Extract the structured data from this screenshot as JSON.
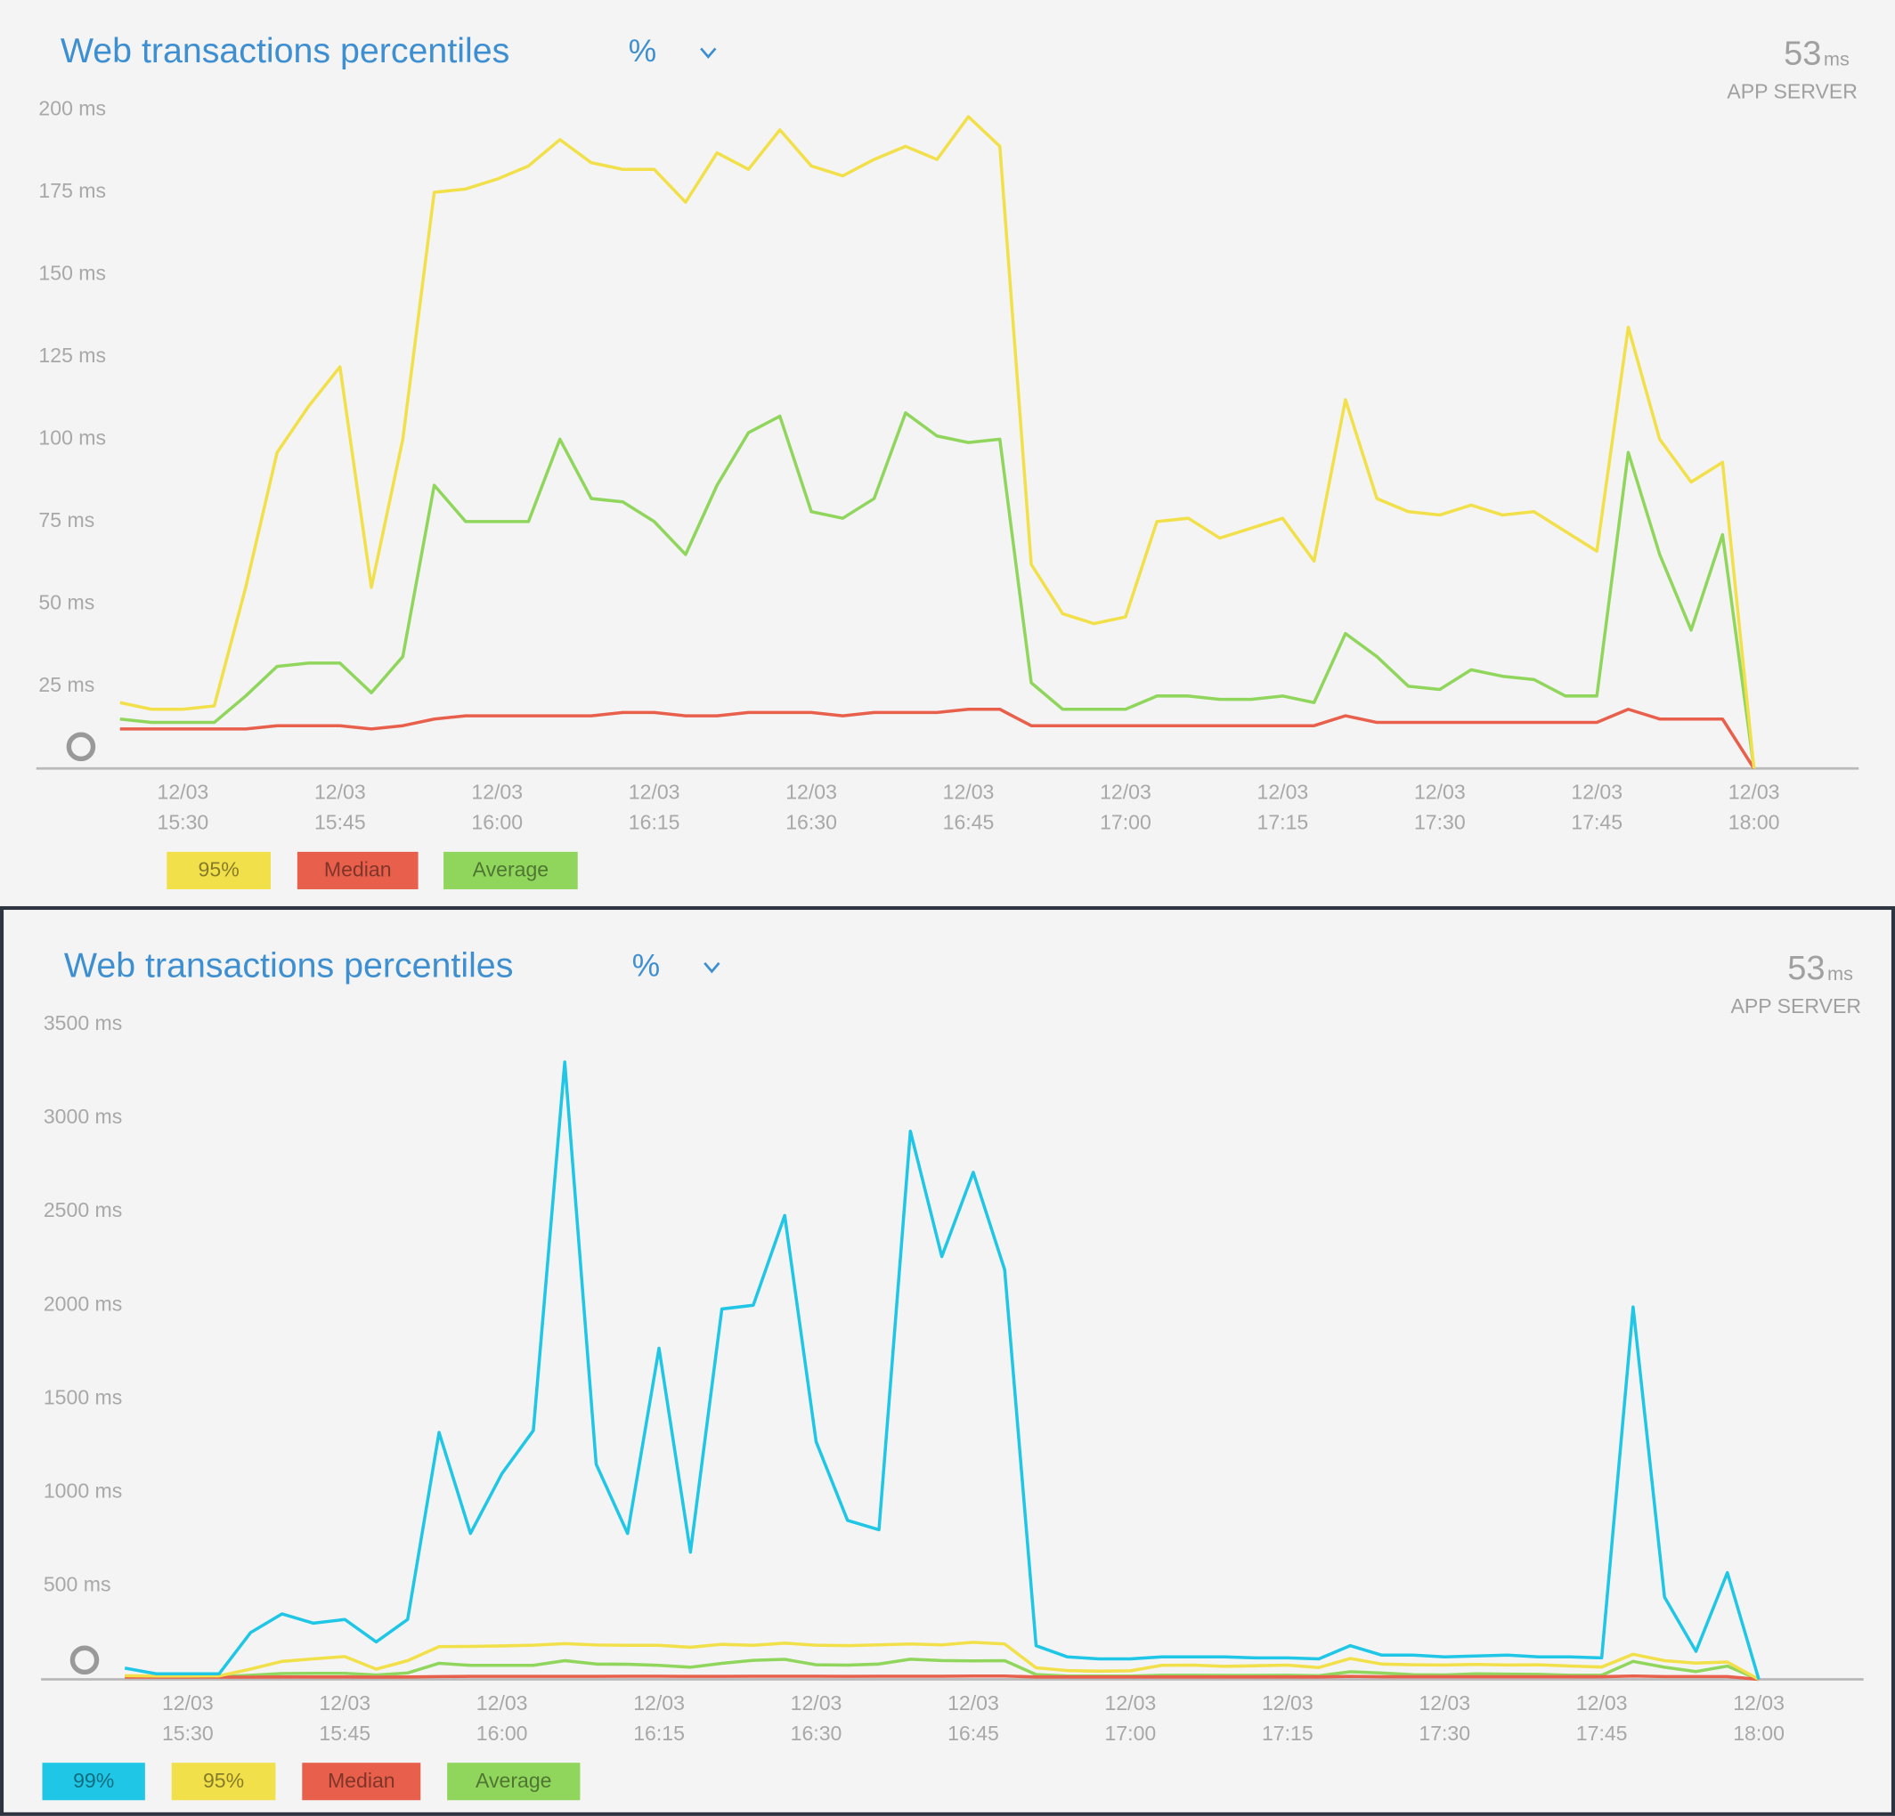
{
  "chart_data": [
    {
      "type": "line",
      "title": "Web transactions percentiles",
      "selector": "%",
      "headline_value": 53,
      "headline_unit": "ms",
      "headline_label": "APP SERVER",
      "x": [
        "12/03 15:24",
        "12/03 15:27",
        "12/03 15:30",
        "12/03 15:33",
        "12/03 15:36",
        "12/03 15:39",
        "12/03 15:42",
        "12/03 15:45",
        "12/03 15:48",
        "12/03 15:51",
        "12/03 15:54",
        "12/03 15:57",
        "12/03 16:00",
        "12/03 16:03",
        "12/03 16:06",
        "12/03 16:09",
        "12/03 16:12",
        "12/03 16:15",
        "12/03 16:18",
        "12/03 16:21",
        "12/03 16:24",
        "12/03 16:27",
        "12/03 16:30",
        "12/03 16:33",
        "12/03 16:36",
        "12/03 16:39",
        "12/03 16:42",
        "12/03 16:45",
        "12/03 16:48",
        "12/03 16:51",
        "12/03 16:54",
        "12/03 16:57",
        "12/03 17:00",
        "12/03 17:03",
        "12/03 17:06",
        "12/03 17:09",
        "12/03 17:12",
        "12/03 17:15",
        "12/03 17:18",
        "12/03 17:21",
        "12/03 17:24",
        "12/03 17:27",
        "12/03 17:30",
        "12/03 17:33",
        "12/03 17:36",
        "12/03 17:39",
        "12/03 17:42",
        "12/03 17:45",
        "12/03 17:48",
        "12/03 17:51",
        "12/03 17:54",
        "12/03 17:57",
        "12/03 18:00"
      ],
      "series": [
        {
          "name": "95%",
          "color": "#f2e04a",
          "values": [
            20,
            18,
            18,
            19,
            55,
            96,
            110,
            122,
            55,
            100,
            175,
            176,
            179,
            183,
            191,
            184,
            182,
            182,
            172,
            187,
            182,
            194,
            183,
            180,
            185,
            189,
            185,
            198,
            189,
            62,
            47,
            44,
            46,
            75,
            76,
            70,
            73,
            76,
            63,
            112,
            82,
            78,
            77,
            80,
            77,
            78,
            72,
            66,
            134,
            100,
            87,
            93,
            0
          ]
        },
        {
          "name": "Median",
          "color": "#e8604c",
          "values": [
            12,
            12,
            12,
            12,
            12,
            13,
            13,
            13,
            12,
            13,
            15,
            16,
            16,
            16,
            16,
            16,
            17,
            17,
            16,
            16,
            17,
            17,
            17,
            16,
            17,
            17,
            17,
            18,
            18,
            13,
            13,
            13,
            13,
            13,
            13,
            13,
            13,
            13,
            13,
            16,
            14,
            14,
            14,
            14,
            14,
            14,
            14,
            14,
            18,
            15,
            15,
            15,
            0
          ]
        },
        {
          "name": "Average",
          "color": "#90d65c",
          "values": [
            15,
            14,
            14,
            14,
            22,
            31,
            32,
            32,
            23,
            34,
            86,
            75,
            75,
            75,
            100,
            82,
            81,
            75,
            65,
            86,
            102,
            107,
            78,
            76,
            82,
            108,
            101,
            99,
            100,
            26,
            18,
            18,
            18,
            22,
            22,
            21,
            21,
            22,
            20,
            41,
            34,
            25,
            24,
            30,
            28,
            27,
            22,
            22,
            96,
            65,
            42,
            71,
            0
          ]
        }
      ],
      "xlim": [
        "12/03 15:16",
        "12/03 18:10"
      ],
      "xticks": [
        "12/03 15:30",
        "12/03 15:45",
        "12/03 16:00",
        "12/03 16:15",
        "12/03 16:30",
        "12/03 16:45",
        "12/03 17:00",
        "12/03 17:15",
        "12/03 17:30",
        "12/03 17:45",
        "12/03 18:00"
      ],
      "ylim": [
        0,
        200
      ],
      "yticks": [
        {
          "value": 25,
          "label": "25 ms"
        },
        {
          "value": 50,
          "label": "50 ms"
        },
        {
          "value": 75,
          "label": "75 ms"
        },
        {
          "value": 100,
          "label": "100 ms"
        },
        {
          "value": 125,
          "label": "125 ms"
        },
        {
          "value": 150,
          "label": "150 ms"
        },
        {
          "value": 175,
          "label": "175 ms"
        },
        {
          "value": 200,
          "label": "200 ms"
        }
      ]
    },
    {
      "type": "line",
      "title": "Web transactions percentiles",
      "selector": "%",
      "headline_value": 53,
      "headline_unit": "ms",
      "headline_label": "APP SERVER",
      "x": [
        "12/03 15:24",
        "12/03 15:27",
        "12/03 15:30",
        "12/03 15:33",
        "12/03 15:36",
        "12/03 15:39",
        "12/03 15:42",
        "12/03 15:45",
        "12/03 15:48",
        "12/03 15:51",
        "12/03 15:54",
        "12/03 15:57",
        "12/03 16:00",
        "12/03 16:03",
        "12/03 16:06",
        "12/03 16:09",
        "12/03 16:12",
        "12/03 16:15",
        "12/03 16:18",
        "12/03 16:21",
        "12/03 16:24",
        "12/03 16:27",
        "12/03 16:30",
        "12/03 16:33",
        "12/03 16:36",
        "12/03 16:39",
        "12/03 16:42",
        "12/03 16:45",
        "12/03 16:48",
        "12/03 16:51",
        "12/03 16:54",
        "12/03 16:57",
        "12/03 17:00",
        "12/03 17:03",
        "12/03 17:06",
        "12/03 17:09",
        "12/03 17:12",
        "12/03 17:15",
        "12/03 17:18",
        "12/03 17:21",
        "12/03 17:24",
        "12/03 17:27",
        "12/03 17:30",
        "12/03 17:33",
        "12/03 17:36",
        "12/03 17:39",
        "12/03 17:42",
        "12/03 17:45",
        "12/03 17:48",
        "12/03 17:51",
        "12/03 17:54",
        "12/03 17:57",
        "12/03 18:00"
      ],
      "series": [
        {
          "name": "99%",
          "color": "#1fc6e6",
          "values": [
            60,
            30,
            30,
            30,
            250,
            350,
            300,
            320,
            200,
            320,
            1320,
            780,
            1100,
            1330,
            3300,
            1150,
            780,
            1770,
            680,
            1980,
            2000,
            2480,
            1270,
            850,
            800,
            2930,
            2260,
            2710,
            2190,
            180,
            120,
            110,
            110,
            120,
            120,
            120,
            115,
            115,
            110,
            180,
            130,
            130,
            120,
            125,
            130,
            120,
            120,
            115,
            1990,
            440,
            150,
            570,
            0
          ]
        },
        {
          "name": "95%",
          "color": "#f2e04a",
          "values": [
            20,
            18,
            18,
            19,
            55,
            96,
            110,
            122,
            55,
            100,
            175,
            176,
            179,
            183,
            191,
            184,
            182,
            182,
            172,
            187,
            182,
            194,
            183,
            180,
            185,
            189,
            185,
            198,
            189,
            62,
            47,
            44,
            46,
            75,
            76,
            70,
            73,
            76,
            63,
            112,
            82,
            78,
            77,
            80,
            77,
            78,
            72,
            66,
            134,
            100,
            87,
            93,
            0
          ]
        },
        {
          "name": "Median",
          "color": "#e8604c",
          "values": [
            12,
            12,
            12,
            12,
            12,
            13,
            13,
            13,
            12,
            13,
            15,
            16,
            16,
            16,
            16,
            16,
            17,
            17,
            16,
            16,
            17,
            17,
            17,
            16,
            17,
            17,
            17,
            18,
            18,
            13,
            13,
            13,
            13,
            13,
            13,
            13,
            13,
            13,
            13,
            16,
            14,
            14,
            14,
            14,
            14,
            14,
            14,
            14,
            18,
            15,
            15,
            15,
            0
          ]
        },
        {
          "name": "Average",
          "color": "#90d65c",
          "values": [
            15,
            14,
            14,
            14,
            22,
            31,
            32,
            32,
            23,
            34,
            86,
            75,
            75,
            75,
            100,
            82,
            81,
            75,
            65,
            86,
            102,
            107,
            78,
            76,
            82,
            108,
            101,
            99,
            100,
            26,
            18,
            18,
            18,
            22,
            22,
            21,
            21,
            22,
            20,
            41,
            34,
            25,
            24,
            30,
            28,
            27,
            22,
            22,
            96,
            65,
            42,
            71,
            0
          ]
        }
      ],
      "xlim": [
        "12/03 15:16",
        "12/03 18:10"
      ],
      "xticks": [
        "12/03 15:30",
        "12/03 15:45",
        "12/03 16:00",
        "12/03 16:15",
        "12/03 16:30",
        "12/03 16:45",
        "12/03 17:00",
        "12/03 17:15",
        "12/03 17:30",
        "12/03 17:45",
        "12/03 18:00"
      ],
      "ylim": [
        0,
        3500
      ],
      "yticks": [
        {
          "value": 500,
          "label": "500 ms"
        },
        {
          "value": 1000,
          "label": "1000 ms"
        },
        {
          "value": 1500,
          "label": "1500 ms"
        },
        {
          "value": 2000,
          "label": "2000 ms"
        },
        {
          "value": 2500,
          "label": "2500 ms"
        },
        {
          "value": 3000,
          "label": "3000 ms"
        },
        {
          "value": 3500,
          "label": "3500 ms"
        }
      ]
    }
  ]
}
